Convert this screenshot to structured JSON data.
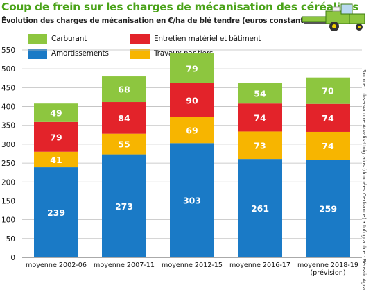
{
  "title": "Coup de frein sur les charges de mécanisation des céréaliers",
  "subtitle": "Évolution des charges de mécanisation en €/ha de blé tendre (euros constants)",
  "source": "Source : observatoire Arvalis-Unigrains (données Cerfrance) • Infographie : Réussir Agra",
  "colors": {
    "Carburant": "#8dc63f",
    "Entretien matériel et bâtiment": "#e3232a",
    "Travaux par tiers": "#f7b500",
    "Amortissements": "#1a7ac6",
    "title": "#4aa319"
  },
  "chart_data": {
    "type": "bar",
    "stacked": true,
    "categories": [
      "moyenne 2002-06",
      "moyenne 2007-11",
      "moyenne 2012-15",
      "moyenne 2016-17",
      "moyenne 2018-19\n(prévision)"
    ],
    "series": [
      {
        "name": "Amortissements",
        "values": [
          239,
          273,
          303,
          261,
          259
        ]
      },
      {
        "name": "Travaux par tiers",
        "values": [
          41,
          55,
          69,
          73,
          74
        ]
      },
      {
        "name": "Entretien matériel et bâtiment",
        "values": [
          79,
          84,
          90,
          74,
          74
        ]
      },
      {
        "name": "Carburant",
        "values": [
          49,
          68,
          79,
          54,
          70
        ]
      }
    ],
    "yticks": [
      0,
      50,
      100,
      150,
      200,
      250,
      300,
      350,
      400,
      450,
      500,
      550
    ],
    "ylim": [
      0,
      550
    ],
    "grid": true,
    "legend": [
      {
        "name": "Carburant"
      },
      {
        "name": "Entretien matériel et bâtiment"
      },
      {
        "name": "Travaux par tiers"
      },
      {
        "name": "Amortissements"
      }
    ]
  }
}
